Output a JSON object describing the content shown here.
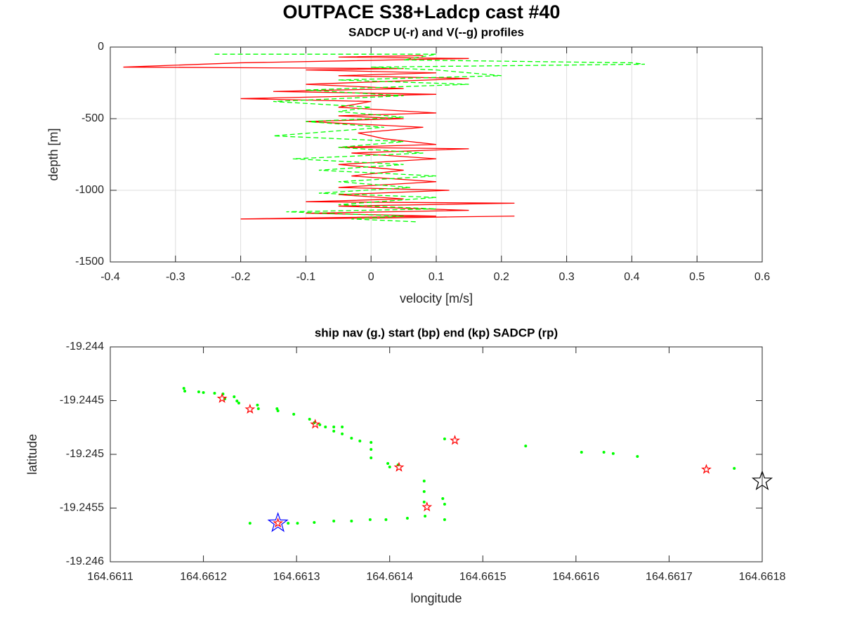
{
  "title": "OUTPACE S38+Ladcp cast #40",
  "chart_data": [
    {
      "type": "line",
      "title": "SADCP U(-r) and V(--g) profiles",
      "xlabel": "velocity [m/s]",
      "ylabel": "depth [m]",
      "xlim": [
        -0.4,
        0.6
      ],
      "xticks": [
        -0.4,
        -0.3,
        -0.2,
        -0.1,
        0,
        0.1,
        0.2,
        0.3,
        0.4,
        0.5,
        0.6
      ],
      "ylim": [
        -1500,
        0
      ],
      "yticks": [
        -1500,
        -1000,
        -500,
        0
      ],
      "grid": true,
      "series": [
        {
          "color": "#ff0000",
          "dashed": false,
          "x": [
            0.08,
            -0.05,
            0.15,
            -0.2,
            -0.38,
            0.05,
            -0.1,
            0.1,
            -0.05,
            0.15,
            -0.1,
            0.05,
            -0.15,
            0.1,
            -0.2,
            0.0,
            -0.05,
            0.1,
            -0.05,
            0.05,
            -0.1,
            0.08,
            -0.02,
            0.02,
            0.1,
            -0.05,
            0.15,
            -0.03,
            0.1,
            -0.05,
            0.05,
            -0.03,
            0.1,
            -0.05,
            0.12,
            -0.05,
            0.05,
            -0.1,
            0.22,
            -0.05,
            0.15,
            -0.1,
            0.1,
            -0.2,
            0.0,
            0.13,
            0.22
          ],
          "values": [
            -60,
            -70,
            -80,
            -110,
            -140,
            -150,
            -160,
            -180,
            -200,
            -220,
            -260,
            -290,
            -310,
            -330,
            -360,
            -380,
            -420,
            -460,
            -480,
            -500,
            -520,
            -560,
            -600,
            -640,
            -680,
            -700,
            -710,
            -740,
            -780,
            -820,
            -860,
            -900,
            -940,
            -980,
            -1000,
            -1030,
            -1060,
            -1080,
            -1090,
            -1110,
            -1140,
            -1160,
            -1180,
            -1200,
            -1195,
            -1185,
            -1180
          ]
        },
        {
          "color": "#00ff00",
          "dashed": true,
          "x": [
            -0.24,
            0.1,
            0.05,
            0.4,
            0.42,
            0.0,
            0.1,
            0.2,
            -0.05,
            0.15,
            -0.1,
            0.05,
            -0.15,
            0.0,
            -0.05,
            0.05,
            -0.1,
            0.02,
            -0.15,
            0.05,
            -0.05,
            0.08,
            -0.12,
            0.05,
            -0.08,
            0.1,
            -0.05,
            0.06,
            -0.08,
            0.1,
            -0.05,
            0.1,
            -0.13,
            0.05,
            -0.03,
            0.07
          ],
          "values": [
            -50,
            -50,
            -90,
            -110,
            -120,
            -140,
            -160,
            -200,
            -230,
            -260,
            -300,
            -340,
            -380,
            -420,
            -450,
            -490,
            -520,
            -560,
            -620,
            -660,
            -700,
            -740,
            -780,
            -820,
            -860,
            -900,
            -940,
            -980,
            -1020,
            -1050,
            -1100,
            -1130,
            -1150,
            -1180,
            -1200,
            -1220
          ]
        }
      ]
    },
    {
      "type": "scatter",
      "title": "ship nav (g.) start (bp) end (kp) SADCP (rp)",
      "xlabel": "longitude",
      "ylabel": "latitude",
      "xlim": [
        164.6611,
        164.6618
      ],
      "xticks": [
        164.6611,
        164.6612,
        164.6613,
        164.6614,
        164.6615,
        164.6616,
        164.6617,
        164.6618
      ],
      "ylim": [
        -19.246,
        -19.244
      ],
      "yticks": [
        -19.246,
        -19.2455,
        -19.245,
        -19.2445,
        -19.244
      ],
      "grid": false,
      "series": [
        {
          "color": "#00ff00",
          "marker": "dot",
          "x": [
            164.661179,
            164.66118,
            164.661195,
            164.6612,
            164.661212,
            164.661221,
            164.661223,
            164.661233,
            164.661236,
            164.661238,
            164.661258,
            164.661259,
            164.661279,
            164.66128,
            164.661297,
            164.661314,
            164.661319,
            164.661325,
            164.661331,
            164.66134,
            164.66134,
            164.661349,
            164.661349,
            164.661359,
            164.661368,
            164.66138,
            164.66138,
            164.66138,
            164.661398,
            164.6614,
            164.661409,
            164.661437,
            164.661437,
            164.661437,
            164.661457,
            164.661459,
            164.661459,
            164.661438,
            164.661419,
            164.661396,
            164.661379,
            164.661359,
            164.66134,
            164.661319,
            164.661301,
            164.661291,
            164.66125,
            164.661459,
            164.661546,
            164.661606,
            164.66163,
            164.66164,
            164.661666,
            164.66177
          ],
          "values": [
            -19.244386,
            -19.244412,
            -19.244418,
            -19.244425,
            -19.244431,
            -19.244438,
            -19.244484,
            -19.244464,
            -19.244503,
            -19.244523,
            -19.244542,
            -19.244575,
            -19.244575,
            -19.244595,
            -19.244627,
            -19.244673,
            -19.244706,
            -19.244725,
            -19.244745,
            -19.244745,
            -19.244784,
            -19.244745,
            -19.24481,
            -19.24485,
            -19.244876,
            -19.244889,
            -19.244954,
            -19.245033,
            -19.245085,
            -19.245118,
            -19.245098,
            -19.245248,
            -19.245346,
            -19.245444,
            -19.245412,
            -19.245464,
            -19.245608,
            -19.245575,
            -19.245595,
            -19.245608,
            -19.245608,
            -19.245621,
            -19.245621,
            -19.245634,
            -19.245641,
            -19.245641,
            -19.245641,
            -19.244856,
            -19.244922,
            -19.24498,
            -19.24498,
            -19.244993,
            -19.24502,
            -19.245131
          ]
        },
        {
          "color": "#ff0000",
          "marker": "star-small",
          "x": [
            164.66122,
            164.66125,
            164.66132,
            164.66147,
            164.66141,
            164.66174,
            164.66144,
            164.66128
          ],
          "values": [
            -19.24448,
            -19.24458,
            -19.24472,
            -19.24487,
            -19.24512,
            -19.24514,
            -19.24549,
            -19.24564
          ]
        },
        {
          "color": "#0000ff",
          "marker": "star-large",
          "x": [
            164.66128
          ],
          "values": [
            -19.24564
          ]
        },
        {
          "color": "#000000",
          "marker": "star-large",
          "x": [
            164.6618
          ],
          "values": [
            -19.24525
          ]
        }
      ]
    }
  ]
}
